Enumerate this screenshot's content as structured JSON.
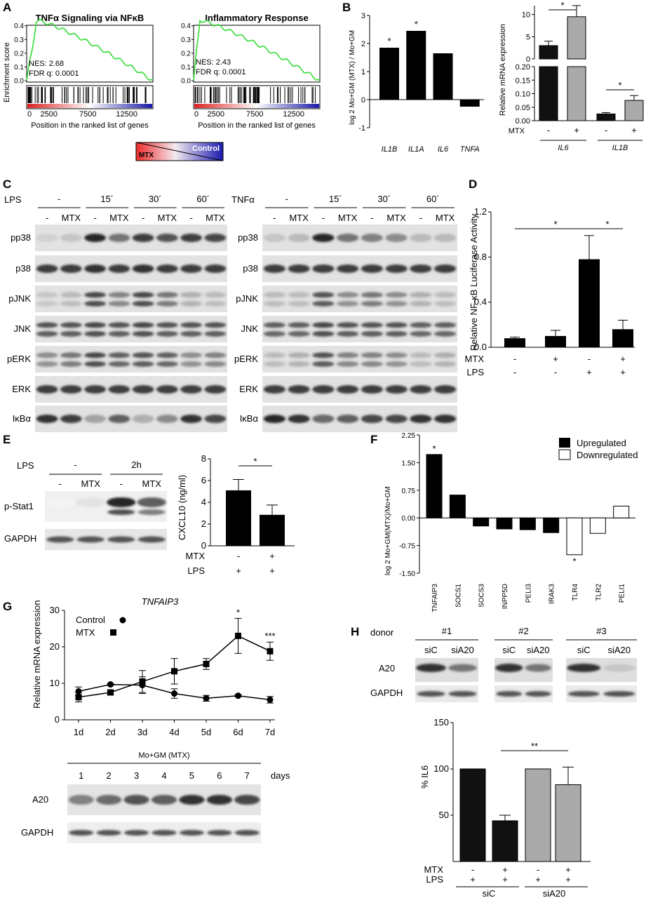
{
  "panels": {
    "A": "A",
    "B": "B",
    "C": "C",
    "D": "D",
    "E": "E",
    "F": "F",
    "G": "G",
    "H": "H"
  },
  "A": {
    "ylabel": "Enrichment score",
    "xlabel": "Position in the ranked list of genes",
    "plots": [
      {
        "title": "TNFα Signaling via NFκB",
        "nes": "NES: 2.68",
        "fdr": "FDR q: 0.0001"
      },
      {
        "title": "Inflammatory Response",
        "nes": "NES: 2.43",
        "fdr": "FDR q: 0.0001"
      }
    ],
    "yticks": [
      "0.4",
      "0.3",
      "0.2",
      "0.1",
      "0.0"
    ],
    "xticks": [
      "0",
      "2500",
      "7500",
      "12500"
    ],
    "gradient_left": "MTX",
    "gradient_right": "Control",
    "colors": {
      "curve": "#33dd33",
      "low": "#dd2222",
      "high": "#1a1aa8"
    }
  },
  "C": {
    "left_treat": "LPS",
    "right_treat": "TNFα",
    "times": [
      "-",
      "15´",
      "30´",
      "60´"
    ],
    "lane_labels": [
      "-",
      "MTX",
      "-",
      "MTX",
      "-",
      "MTX",
      "-",
      "MTX"
    ],
    "rows": [
      "pp38",
      "p38",
      "pJNK",
      "JNK",
      "pERK",
      "ERK",
      "IκBα"
    ]
  },
  "E": {
    "treat": "LPS",
    "times": [
      "-",
      "2h"
    ],
    "lane_labels": [
      "-",
      "MTX",
      "-",
      "MTX"
    ],
    "rows": [
      "p-Stat1",
      "GAPDH"
    ]
  },
  "G_blot": {
    "title": "Mo+GM (MTX)",
    "lanes": [
      "1",
      "2",
      "3",
      "4",
      "5",
      "6",
      "7"
    ],
    "days_label": "days",
    "rows": [
      "A20",
      "GAPDH"
    ]
  },
  "H_blot": {
    "donor_label": "donor",
    "donors": [
      "#1",
      "#2",
      "#3"
    ],
    "lanes": [
      "siC",
      "siA20"
    ],
    "rows": [
      "A20",
      "GAPDH"
    ]
  },
  "chart_data": [
    {
      "id": "B-left",
      "type": "bar",
      "categories": [
        "IL1B",
        "IL1A",
        "IL6",
        "TNFA"
      ],
      "values": [
        1.85,
        2.45,
        1.65,
        -0.25
      ],
      "significance": [
        "*",
        "*",
        "",
        ""
      ],
      "ylabel": "log 2 Mo+GM (MTX) / Mo+GM",
      "ylim": [
        -1,
        3
      ],
      "yticks": [
        "3",
        "2",
        "1",
        "0",
        "-1"
      ]
    },
    {
      "id": "B-right",
      "type": "bar",
      "ylabel": "Relative mRNA expression",
      "groups": [
        "IL6",
        "IL1B"
      ],
      "treatment_label": "MTX",
      "treatment_signs": [
        "-",
        "+",
        "-",
        "+"
      ],
      "values": [
        3.0,
        9.5,
        0.025,
        0.075
      ],
      "errors": [
        1.0,
        2.5,
        0.005,
        0.018
      ],
      "significance": [
        "*",
        "*"
      ],
      "yticks_top": [
        "10",
        "5",
        "0"
      ],
      "yticks_bottom": [
        "0.20",
        "0.15",
        "0.10",
        "0.05",
        "0.00"
      ],
      "colors": [
        "#111111",
        "#aaaaaa",
        "#111111",
        "#aaaaaa"
      ]
    },
    {
      "id": "D",
      "type": "bar",
      "ylabel": "Relative NF-κB Luciferase Activity",
      "values": [
        0.08,
        0.1,
        0.78,
        0.16
      ],
      "errors": [
        0.01,
        0.05,
        0.21,
        0.08
      ],
      "row_labels": [
        "MTX",
        "LPS"
      ],
      "mtx_signs": [
        "-",
        "+",
        "-",
        "+"
      ],
      "lps_signs": [
        "-",
        "-",
        "+",
        "+"
      ],
      "ylim": [
        0,
        1.2
      ],
      "yticks": [
        "1.2",
        "0.8",
        "0.4",
        "0.0"
      ],
      "significance": [
        "*",
        "*"
      ]
    },
    {
      "id": "E-right",
      "type": "bar",
      "ylabel": "CXCL10 (ng/ml)",
      "values": [
        5.1,
        2.85
      ],
      "errors": [
        1.0,
        0.9
      ],
      "row_labels": [
        "MTX",
        "LPS"
      ],
      "mtx_signs": [
        "-",
        "+"
      ],
      "lps_signs": [
        "+",
        "+"
      ],
      "ylim": [
        0,
        8
      ],
      "yticks": [
        "8",
        "6",
        "4",
        "2",
        "0"
      ],
      "significance": [
        "*"
      ]
    },
    {
      "id": "F",
      "type": "bar",
      "ylabel": "log 2 Mo+GM(MTX)/Mo+GM",
      "categories": [
        "TNFAIP3",
        "SOCS1",
        "SOCS3",
        "INPP5D",
        "PELI3",
        "IRAK3",
        "TLR4",
        "TLR2",
        "PELI1"
      ],
      "values": [
        1.72,
        0.62,
        -0.22,
        -0.3,
        -0.32,
        -0.4,
        -1.0,
        -0.42,
        0.32
      ],
      "regulation": [
        "up",
        "up",
        "up",
        "up",
        "up",
        "up",
        "down",
        "down",
        "down"
      ],
      "significance": [
        "*",
        "",
        "",
        "",
        "",
        "",
        "*",
        "",
        ""
      ],
      "ylim": [
        -1.5,
        2.25
      ],
      "yticks": [
        "2.25",
        "1.50",
        "0.75",
        "0.00",
        "-0.75",
        "-1.50"
      ],
      "legend": [
        "Upregulated",
        "Downregulated"
      ]
    },
    {
      "id": "G",
      "type": "line",
      "title": "TNFAIP3",
      "ylabel": "Relative mRNA expression",
      "x": [
        "1d",
        "2d",
        "3d",
        "4d",
        "5d",
        "6d",
        "7d"
      ],
      "series": [
        {
          "name": "Control",
          "values": [
            7.8,
            9.7,
            9.5,
            7.2,
            5.9,
            6.6,
            5.5
          ],
          "errors": [
            1.2,
            0.3,
            2.3,
            1.3,
            0.8,
            0.3,
            0.9
          ]
        },
        {
          "name": "MTX",
          "values": [
            6.2,
            7.5,
            10.5,
            13.3,
            15.3,
            23.0,
            18.8
          ],
          "errors": [
            1.3,
            0.6,
            3.0,
            3.5,
            1.5,
            4.8,
            2.5
          ]
        }
      ],
      "significance": [
        "",
        "",
        "",
        "",
        "",
        "*",
        "***"
      ],
      "ylim": [
        0,
        30
      ],
      "yticks": [
        "30",
        "20",
        "10",
        "0"
      ]
    },
    {
      "id": "H",
      "type": "bar",
      "ylabel": "% IL6",
      "values": [
        100,
        44,
        100,
        83
      ],
      "errors": [
        0,
        6,
        0,
        19
      ],
      "row_labels": [
        "MTX",
        "LPS"
      ],
      "mtx_signs": [
        "-",
        "+",
        "-",
        "+"
      ],
      "lps_signs": [
        "+",
        "+",
        "+",
        "+"
      ],
      "groups": [
        "siC",
        "siA20"
      ],
      "ylim": [
        0,
        150
      ],
      "yticks": [
        "150",
        "100",
        "50"
      ],
      "significance": [
        "**"
      ],
      "colors": [
        "#111111",
        "#111111",
        "#aaaaaa",
        "#aaaaaa"
      ]
    }
  ]
}
